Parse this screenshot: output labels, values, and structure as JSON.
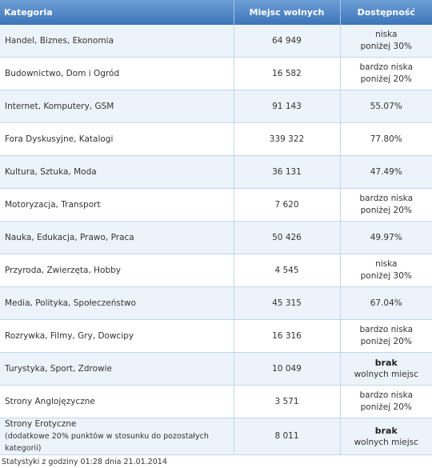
{
  "table": {
    "headers": {
      "category": "Kategoria",
      "free_places": "Miejsc wolnych",
      "availability": "Dostępność"
    },
    "rows": [
      {
        "category": "Handel, Biznes, Ekonomia",
        "note": "",
        "free": "64 949",
        "avail1": "niska",
        "avail2": "poniżej 30%",
        "bold": false
      },
      {
        "category": "Budownictwo, Dom i Ogród",
        "note": "",
        "free": "16 582",
        "avail1": "bardzo niska",
        "avail2": "poniżej 20%",
        "bold": false
      },
      {
        "category": "Internet, Komputery, GSM",
        "note": "",
        "free": "91 143",
        "avail1": "55.07%",
        "avail2": "",
        "bold": false
      },
      {
        "category": "Fora Dyskusyjne, Katalogi",
        "note": "",
        "free": "339 322",
        "avail1": "77.80%",
        "avail2": "",
        "bold": false
      },
      {
        "category": "Kultura, Sztuka, Moda",
        "note": "",
        "free": "36 131",
        "avail1": "47.49%",
        "avail2": "",
        "bold": false
      },
      {
        "category": "Motoryzacja, Transport",
        "note": "",
        "free": "7 620",
        "avail1": "bardzo niska",
        "avail2": "poniżej 20%",
        "bold": false
      },
      {
        "category": "Nauka, Edukacja, Prawo, Praca",
        "note": "",
        "free": "50 426",
        "avail1": "49.97%",
        "avail2": "",
        "bold": false
      },
      {
        "category": "Przyroda, Zwierzęta, Hobby",
        "note": "",
        "free": "4 545",
        "avail1": "niska",
        "avail2": "poniżej 30%",
        "bold": false
      },
      {
        "category": "Media, Polityka, Społeczeństwo",
        "note": "",
        "free": "45 315",
        "avail1": "67.04%",
        "avail2": "",
        "bold": false
      },
      {
        "category": "Rozrywka, Filmy, Gry, Dowcipy",
        "note": "",
        "free": "16 316",
        "avail1": "bardzo niska",
        "avail2": "poniżej 20%",
        "bold": false
      },
      {
        "category": "Turystyka, Sport, Zdrowie",
        "note": "",
        "free": "10 049",
        "avail1": "brak",
        "avail2": "wolnych miejsc",
        "bold": true
      },
      {
        "category": "Strony Anglojęzyczne",
        "note": "",
        "free": "3 571",
        "avail1": "bardzo niska",
        "avail2": "poniżej 20%",
        "bold": false
      },
      {
        "category": "Strony Erotyczne",
        "note": "(dodatkowe 20% punktów w stosunku do pozostałych kategorii)",
        "free": "8 011",
        "avail1": "brak",
        "avail2": "wolnych miejsc",
        "bold": true
      }
    ]
  },
  "footer": {
    "text": "Statystyki z godziny 01:28 dnia 21.01.2014"
  },
  "colors": {
    "header_bg": "#4a82c4",
    "row_alt_bg": "#edf3fb",
    "border": "#c3d5ea"
  }
}
